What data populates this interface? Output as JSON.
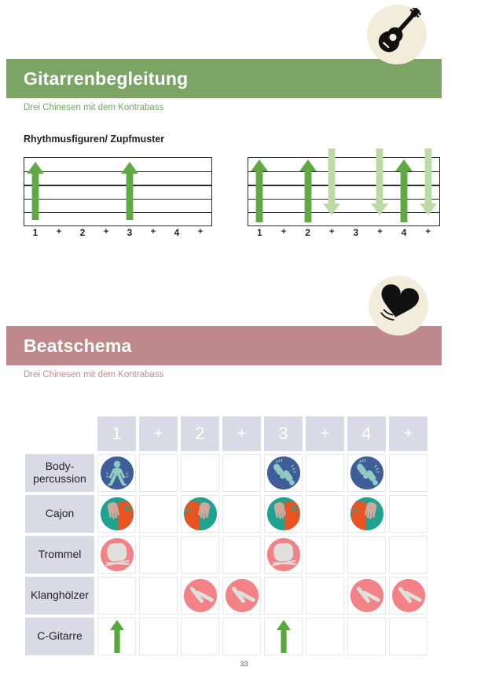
{
  "page": {
    "number": "33"
  },
  "colors": {
    "green_banner": "#7CA465",
    "green_text": "#69A95B",
    "mauve_banner": "#BF898C",
    "mauve_text": "#C28B8F",
    "cream": "#F2EDDB",
    "lavender": "#DADAE7",
    "arrow_dark": "#61A945",
    "arrow_light": "#BADCA4",
    "table_arrow_green": "#56A73C",
    "icon_blue": "#3F5E99",
    "icon_figure": "#90CBBF",
    "icon_teal": "#1FA390",
    "icon_orange": "#E85321",
    "icon_hand": "#D0A99E",
    "icon_salmon": "#F28285",
    "icon_grey": "#E0DFDC",
    "ink": "#111111"
  },
  "guitar_section": {
    "title": "Gitarrenbegleitung",
    "subtitle": "Drei Chinesen mit dem Kontrabass",
    "heading": "Rhythmusfiguren/ Zupfmuster",
    "badge_icon": "guitar-icon"
  },
  "beat_section": {
    "title": "Beatschema",
    "subtitle": "Drei Chinesen mit dem Kontrabass",
    "badge_icon": "heart-icon"
  },
  "icon_labels": {
    "cajon_right": "R",
    "cajon_left": "L"
  },
  "chart_data": [
    {
      "type": "strum-pattern",
      "beats": [
        "1",
        "+",
        "2",
        "+",
        "3",
        "+",
        "4",
        "+"
      ],
      "strings": 6,
      "strokes": [
        {
          "beat_index": 0,
          "beat": "1",
          "direction": "up",
          "shade": "dark"
        },
        {
          "beat_index": 4,
          "beat": "3",
          "direction": "up",
          "shade": "dark"
        }
      ]
    },
    {
      "type": "strum-pattern",
      "beats": [
        "1",
        "+",
        "2",
        "+",
        "3",
        "+",
        "4",
        "+"
      ],
      "strings": 6,
      "strokes": [
        {
          "beat_index": 0,
          "beat": "1",
          "direction": "up",
          "shade": "dark"
        },
        {
          "beat_index": 2,
          "beat": "2",
          "direction": "up",
          "shade": "dark"
        },
        {
          "beat_index": 3,
          "beat": "2+",
          "direction": "down",
          "shade": "light"
        },
        {
          "beat_index": 5,
          "beat": "3+",
          "direction": "down",
          "shade": "light"
        },
        {
          "beat_index": 6,
          "beat": "4",
          "direction": "up",
          "shade": "dark"
        },
        {
          "beat_index": 7,
          "beat": "4+",
          "direction": "down",
          "shade": "light"
        }
      ]
    }
  ],
  "beat_table": {
    "columns": [
      "1",
      "+",
      "2",
      "+",
      "3",
      "+",
      "4",
      "+"
    ],
    "rows": [
      {
        "label": "Body-\npercussion",
        "cells": [
          "bodypercussion-sit",
          null,
          null,
          null,
          "bodypercussion-stomp",
          null,
          "bodypercussion-stomp",
          null
        ]
      },
      {
        "label": "Cajon",
        "cells": [
          "cajon-right-hand",
          null,
          "cajon-left-hand",
          null,
          "cajon-right-hand",
          null,
          "cajon-left-hand",
          null
        ]
      },
      {
        "label": "Trommel",
        "cells": [
          "drum",
          null,
          null,
          null,
          "drum",
          null,
          null,
          null
        ]
      },
      {
        "label": "Klanghölzer",
        "cells": [
          null,
          null,
          "claves",
          "claves",
          null,
          null,
          "claves",
          "claves"
        ]
      },
      {
        "label": "C-Gitarre",
        "cells": [
          "strum-up-arrow",
          null,
          null,
          null,
          "strum-up-arrow",
          null,
          null,
          null
        ]
      }
    ]
  }
}
